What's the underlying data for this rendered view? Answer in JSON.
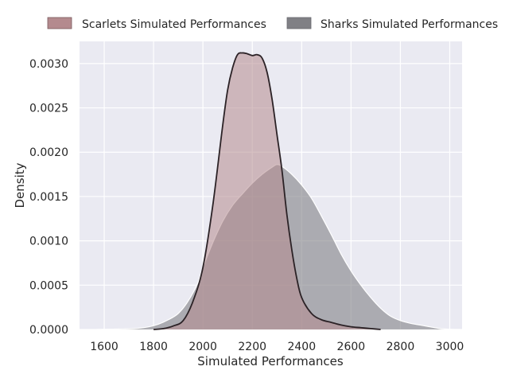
{
  "chart_data": {
    "type": "area",
    "title": "",
    "xlabel": "Simulated Performances",
    "ylabel": "Density",
    "xlim": [
      1500,
      3050
    ],
    "ylim": [
      0,
      0.00325
    ],
    "x_ticks": [
      1600,
      1800,
      2000,
      2200,
      2400,
      2600,
      2800,
      3000
    ],
    "y_ticks": [
      0.0,
      0.0005,
      0.001,
      0.0015,
      0.002,
      0.0025,
      0.003
    ],
    "x_tick_labels": [
      "1600",
      "1800",
      "2000",
      "2200",
      "2400",
      "2600",
      "2800",
      "3000"
    ],
    "y_tick_labels": [
      "0.0000",
      "0.0005",
      "0.0010",
      "0.0015",
      "0.0020",
      "0.0025",
      "0.0030"
    ],
    "grid": true,
    "legend_position": "top, above plot",
    "series": [
      {
        "name": "Scarlets Simulated Performances",
        "fill_color": "#b48a8e",
        "line_color": "#2b2226",
        "x": [
          1800,
          1840,
          1880,
          1920,
          1960,
          2000,
          2040,
          2080,
          2100,
          2120,
          2140,
          2160,
          2180,
          2200,
          2220,
          2240,
          2260,
          2280,
          2300,
          2320,
          2340,
          2360,
          2380,
          2400,
          2440,
          2480,
          2520,
          2560,
          2600,
          2640,
          2680,
          2720
        ],
        "y": [
          0,
          1e-05,
          4e-05,
          0.0001,
          0.00032,
          0.0007,
          0.0014,
          0.0023,
          0.0027,
          0.00295,
          0.0031,
          0.00312,
          0.00311,
          0.00309,
          0.0031,
          0.00306,
          0.0029,
          0.0026,
          0.0022,
          0.0018,
          0.0013,
          0.0009,
          0.00058,
          0.00036,
          0.00018,
          0.00011,
          8e-05,
          5e-05,
          3e-05,
          2e-05,
          1e-05,
          0
        ]
      },
      {
        "name": "Sharks Simulated Performances",
        "fill_color": "#808085",
        "line_color": "#ffffff",
        "x": [
          1570,
          1650,
          1720,
          1780,
          1820,
          1860,
          1900,
          1940,
          1980,
          2000,
          2040,
          2080,
          2120,
          2160,
          2200,
          2240,
          2280,
          2300,
          2320,
          2360,
          2400,
          2440,
          2480,
          2520,
          2560,
          2600,
          2640,
          2680,
          2720,
          2760,
          2800,
          2840,
          2880,
          2920,
          2960,
          3000,
          3040
        ],
        "y": [
          0,
          5e-06,
          1e-05,
          3e-05,
          6e-05,
          0.00011,
          0.00018,
          0.00032,
          0.00053,
          0.0007,
          0.00098,
          0.00122,
          0.0014,
          0.00153,
          0.00165,
          0.00175,
          0.00183,
          0.00186,
          0.00184,
          0.00175,
          0.00163,
          0.00148,
          0.00128,
          0.00107,
          0.00085,
          0.00066,
          0.0005,
          0.00036,
          0.00024,
          0.00015,
          0.0001,
          7e-05,
          5e-05,
          3e-05,
          1e-05,
          3e-06,
          0
        ]
      }
    ]
  }
}
